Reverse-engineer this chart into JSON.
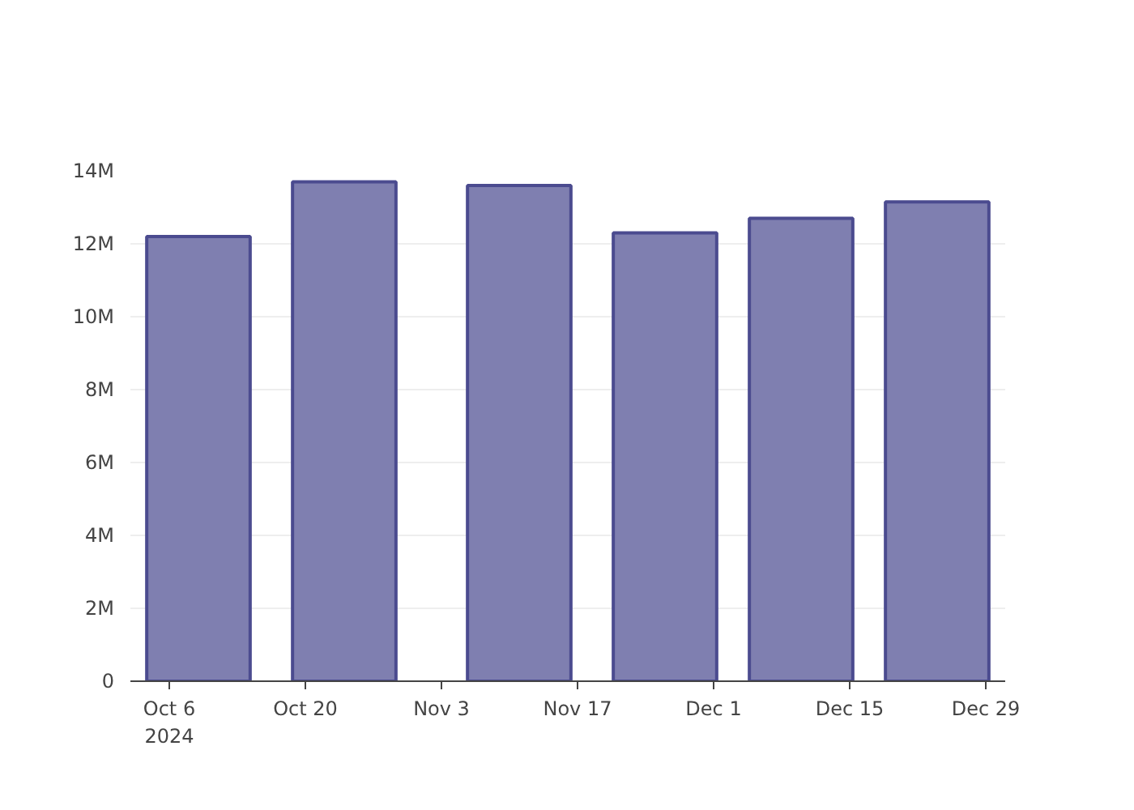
{
  "chart_data": {
    "type": "bar",
    "x": [
      "2024-10-09",
      "2024-10-24",
      "2024-11-11",
      "2024-11-26",
      "2024-12-10",
      "2024-12-24"
    ],
    "values": [
      12200000,
      13700000,
      13600000,
      12300000,
      12700000,
      13150000
    ],
    "color": "#7f7fb0",
    "xlim": [
      "2024-10-02",
      "2024-12-31"
    ],
    "xticks": [
      {
        "value": "2024-10-06",
        "label": "Oct 6\n2024"
      },
      {
        "value": "2024-10-20",
        "label": "Oct 20"
      },
      {
        "value": "2024-11-03",
        "label": "Nov 3"
      },
      {
        "value": "2024-11-17",
        "label": "Nov 17"
      },
      {
        "value": "2024-12-01",
        "label": "Dec 1"
      },
      {
        "value": "2024-12-15",
        "label": "Dec 15"
      },
      {
        "value": "2024-12-29",
        "label": "Dec 29"
      }
    ],
    "ylim": [
      0,
      14000000
    ],
    "yticks": [
      {
        "value": 0,
        "label": "0"
      },
      {
        "value": 2000000,
        "label": "2M"
      },
      {
        "value": 4000000,
        "label": "4M"
      },
      {
        "value": 6000000,
        "label": "6M"
      },
      {
        "value": 8000000,
        "label": "8M"
      },
      {
        "value": 10000000,
        "label": "10M"
      },
      {
        "value": 12000000,
        "label": "12M"
      },
      {
        "value": 14000000,
        "label": "14M"
      }
    ],
    "grid": "y"
  }
}
